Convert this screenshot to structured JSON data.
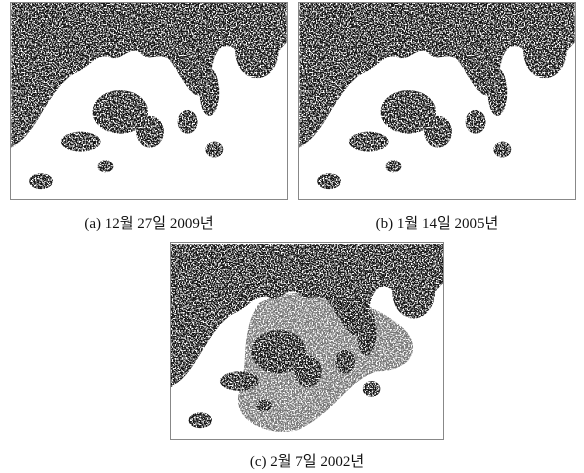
{
  "panels": [
    {
      "caption": "(a) 12월 27일 2009년"
    },
    {
      "caption": "(b) 1월 14일 2005년"
    },
    {
      "caption": "(c) 2월 7일 2002년"
    }
  ]
}
